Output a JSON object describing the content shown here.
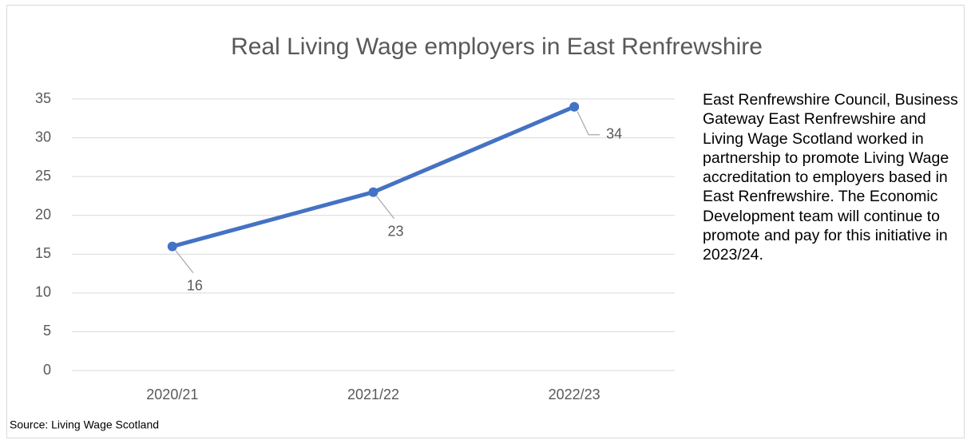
{
  "chart_data": {
    "type": "line",
    "title": "Real Living Wage employers in East Renfrewshire",
    "categories": [
      "2020/21",
      "2021/22",
      "2022/23"
    ],
    "series": [
      {
        "name": "Real Living Wage employers",
        "color": "#4472c4",
        "values": [
          16,
          23,
          34
        ]
      }
    ],
    "ylim": [
      0,
      35
    ],
    "yticks": [
      0,
      5,
      10,
      15,
      20,
      25,
      30,
      35
    ],
    "grid": true,
    "source": "Source: Living Wage Scotland",
    "note": "East Renfrewshire Council, Business Gateway East Renfrewshire and Living Wage Scotland worked in partnership to promote Living Wage accreditation to employers based in East Renfrewshire.  The Economic Development team will continue to promote and pay for this initiative in 2023/24."
  }
}
